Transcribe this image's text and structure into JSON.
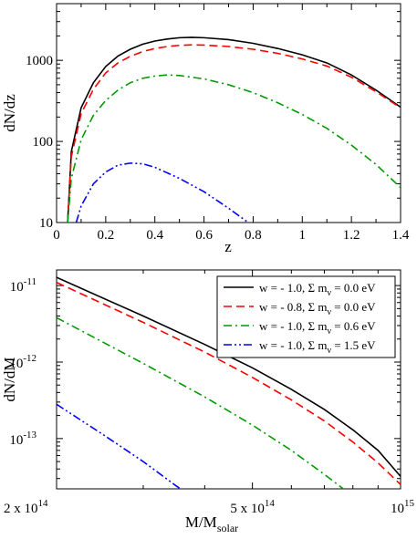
{
  "chart_data": [
    {
      "type": "line",
      "xlabel": "z",
      "ylabel": "dN/dz",
      "yscale": "log",
      "xlim": [
        0,
        1.4
      ],
      "ylim": [
        10,
        5000
      ],
      "x_ticks": [
        0,
        0.2,
        0.4,
        0.6,
        0.8,
        1,
        1.2,
        1.4
      ],
      "x_tick_labels": [
        "0",
        "0.2",
        "0.4",
        "0.6",
        "0.8",
        "1",
        "1.2",
        "1.4"
      ],
      "y_ticks": [
        10,
        100,
        1000
      ],
      "y_tick_labels": [
        "10",
        "100",
        "1000"
      ],
      "grid": false,
      "series": [
        {
          "color": "#000000",
          "dash": "solid",
          "points": [
            [
              0.045,
              10
            ],
            [
              0.06,
              75
            ],
            [
              0.1,
              260
            ],
            [
              0.15,
              530
            ],
            [
              0.2,
              840
            ],
            [
              0.25,
              1130
            ],
            [
              0.3,
              1370
            ],
            [
              0.35,
              1580
            ],
            [
              0.4,
              1730
            ],
            [
              0.45,
              1830
            ],
            [
              0.5,
              1900
            ],
            [
              0.55,
              1920
            ],
            [
              0.6,
              1900
            ],
            [
              0.7,
              1800
            ],
            [
              0.8,
              1620
            ],
            [
              0.9,
              1400
            ],
            [
              1.0,
              1170
            ],
            [
              1.1,
              930
            ],
            [
              1.2,
              660
            ],
            [
              1.3,
              430
            ],
            [
              1.4,
              265
            ]
          ]
        },
        {
          "color": "#ff0000",
          "dash": "dashed",
          "points": [
            [
              0.045,
              10
            ],
            [
              0.06,
              65
            ],
            [
              0.1,
              220
            ],
            [
              0.15,
              440
            ],
            [
              0.2,
              700
            ],
            [
              0.25,
              930
            ],
            [
              0.3,
              1120
            ],
            [
              0.35,
              1280
            ],
            [
              0.4,
              1400
            ],
            [
              0.45,
              1480
            ],
            [
              0.5,
              1530
            ],
            [
              0.55,
              1550
            ],
            [
              0.6,
              1540
            ],
            [
              0.7,
              1480
            ],
            [
              0.8,
              1370
            ],
            [
              0.9,
              1220
            ],
            [
              1.0,
              1040
            ],
            [
              1.1,
              850
            ],
            [
              1.2,
              620
            ],
            [
              1.3,
              410
            ],
            [
              1.4,
              260
            ]
          ]
        },
        {
          "color": "#009900",
          "dash": "dashdot",
          "points": [
            [
              0.045,
              10
            ],
            [
              0.06,
              35
            ],
            [
              0.1,
              105
            ],
            [
              0.15,
              210
            ],
            [
              0.2,
              320
            ],
            [
              0.25,
              430
            ],
            [
              0.3,
              530
            ],
            [
              0.35,
              600
            ],
            [
              0.4,
              640
            ],
            [
              0.45,
              660
            ],
            [
              0.5,
              650
            ],
            [
              0.6,
              590
            ],
            [
              0.7,
              500
            ],
            [
              0.8,
              400
            ],
            [
              0.9,
              300
            ],
            [
              1.0,
              215
            ],
            [
              1.1,
              145
            ],
            [
              1.2,
              90
            ],
            [
              1.3,
              52
            ],
            [
              1.4,
              27
            ]
          ]
        },
        {
          "color": "#0000ff",
          "dash": "dashdotdot",
          "points": [
            [
              0.08,
              10
            ],
            [
              0.1,
              16
            ],
            [
              0.15,
              30
            ],
            [
              0.2,
              42
            ],
            [
              0.25,
              51
            ],
            [
              0.3,
              54
            ],
            [
              0.35,
              53
            ],
            [
              0.4,
              48
            ],
            [
              0.5,
              35
            ],
            [
              0.6,
              24
            ],
            [
              0.7,
              15
            ],
            [
              0.78,
              10
            ]
          ]
        }
      ]
    },
    {
      "type": "line",
      "xlabel": "M/M",
      "xlabel_sub": "solar",
      "ylabel": "dN/dM",
      "xscale": "log",
      "yscale": "log",
      "xlim": [
        200000000000000.0,
        1000000000000000.0
      ],
      "ylim": [
        2.2e-14,
        1.6e-11
      ],
      "x_ticks": [
        200000000000000.0,
        500000000000000.0,
        1000000000000000.0
      ],
      "x_tick_labels": [
        {
          "base": "2 x 10",
          "exp": "14"
        },
        {
          "base": "5 x 10",
          "exp": "14"
        },
        {
          "base": "10",
          "exp": "15"
        }
      ],
      "y_ticks": [
        1e-11,
        1e-12,
        1e-13
      ],
      "y_tick_labels": [
        {
          "base": "10",
          "exp": "-11"
        },
        {
          "base": "10",
          "exp": "-12"
        },
        {
          "base": "10",
          "exp": "-13"
        }
      ],
      "grid": false,
      "legend_position": "top-right",
      "series": [
        {
          "label": {
            "pre": "w = - 1.0, Σ m",
            "sub": "ν",
            "post": " = 0.0 eV"
          },
          "color": "#000000",
          "dash": "solid",
          "points": [
            [
              200000000000000.0,
              1.28e-11
            ],
            [
              300000000000000.0,
              4e-12
            ],
            [
              400000000000000.0,
              1.7e-12
            ],
            [
              500000000000000.0,
              8.4e-13
            ],
            [
              600000000000000.0,
              4.4e-13
            ],
            [
              700000000000000.0,
              2.4e-13
            ],
            [
              800000000000000.0,
              1.3e-13
            ],
            [
              900000000000000.0,
              7e-14
            ],
            [
              1000000000000000.0,
              3.2e-14
            ]
          ]
        },
        {
          "label": {
            "pre": "w = - 0.8, Σ m",
            "sub": "ν",
            "post": " = 0.0 eV"
          },
          "color": "#ff0000",
          "dash": "dashed",
          "points": [
            [
              200000000000000.0,
              1.1e-11
            ],
            [
              300000000000000.0,
              3.3e-12
            ],
            [
              400000000000000.0,
              1.35e-12
            ],
            [
              500000000000000.0,
              6.3e-13
            ],
            [
              600000000000000.0,
              3.2e-13
            ],
            [
              700000000000000.0,
              1.7e-13
            ],
            [
              800000000000000.0,
              9e-14
            ],
            [
              900000000000000.0,
              4.8e-14
            ],
            [
              1000000000000000.0,
              2.5e-14
            ]
          ]
        },
        {
          "label": {
            "pre": "w = - 1.0, Σ m",
            "sub": "ν",
            "post": " = 0.6 eV"
          },
          "color": "#009900",
          "dash": "dashdot",
          "points": [
            [
              200000000000000.0,
              3.8e-12
            ],
            [
              300000000000000.0,
              9.6e-13
            ],
            [
              400000000000000.0,
              3.5e-13
            ],
            [
              500000000000000.0,
              1.5e-13
            ],
            [
              600000000000000.0,
              7e-14
            ],
            [
              700000000000000.0,
              3.4e-14
            ],
            [
              780000000000000.0,
              2e-14
            ]
          ]
        },
        {
          "label": {
            "pre": "w = - 1.0, Σ m",
            "sub": "ν",
            "post": " = 1.5 eV"
          },
          "color": "#0000ff",
          "dash": "dashdotdot",
          "points": [
            [
              200000000000000.0,
              2.8e-13
            ],
            [
              250000000000000.0,
              1.1e-13
            ],
            [
              300000000000000.0,
              5e-14
            ],
            [
              350000000000000.0,
              2.4e-14
            ],
            [
              365000000000000.0,
              2e-14
            ]
          ]
        }
      ]
    }
  ]
}
